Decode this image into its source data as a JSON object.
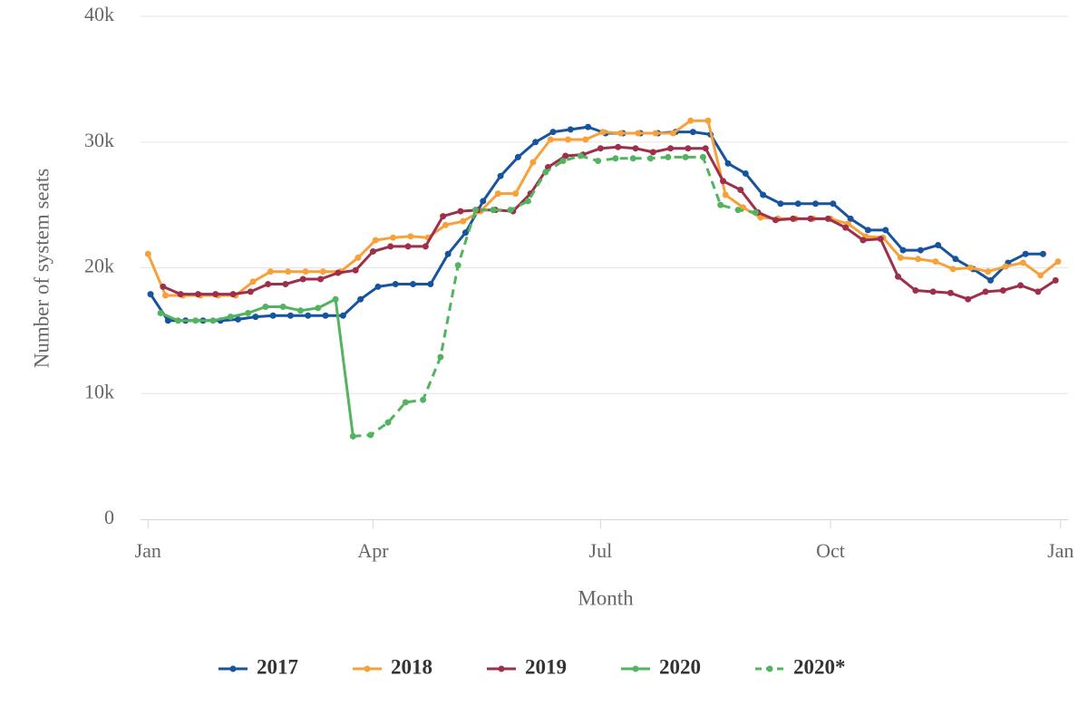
{
  "chart_data": {
    "type": "line",
    "xlabel": "Month",
    "ylabel": "Number of system seats",
    "xlim": [
      -3,
      368
    ],
    "xticks": [
      {
        "value": 0,
        "label": "Jan"
      },
      {
        "value": 90,
        "label": "Apr"
      },
      {
        "value": 181,
        "label": "Jul"
      },
      {
        "value": 273,
        "label": "Oct"
      },
      {
        "value": 365,
        "label": "Jan"
      }
    ],
    "ylim": [
      0,
      40000
    ],
    "yticks": [
      {
        "value": 0,
        "label": "0"
      },
      {
        "value": 10000,
        "label": "10k"
      },
      {
        "value": 20000,
        "label": "20k"
      },
      {
        "value": 30000,
        "label": "30k"
      },
      {
        "value": 40000,
        "label": "40k"
      }
    ],
    "grid": true,
    "legend": "bottom",
    "series": [
      {
        "name": "2017",
        "color": "#17549e",
        "line_style": "solid",
        "x": [
          1,
          8,
          15,
          22,
          29,
          36,
          43,
          50,
          57,
          64,
          71,
          78,
          85,
          92,
          99,
          106,
          113,
          120,
          127,
          134,
          141,
          148,
          155,
          162,
          169,
          176,
          183,
          190,
          197,
          204,
          211,
          218,
          225,
          232,
          239,
          246,
          253,
          260,
          267,
          274,
          281,
          288,
          295,
          302,
          309,
          316,
          323,
          330,
          337,
          344,
          351,
          358
        ],
        "values": [
          17900,
          15800,
          15800,
          15800,
          15800,
          15900,
          16100,
          16200,
          16200,
          16200,
          16200,
          16200,
          17500,
          18500,
          18700,
          18700,
          18700,
          21100,
          22800,
          25300,
          27300,
          28800,
          30000,
          30800,
          31000,
          31200,
          30700,
          30700,
          30700,
          30700,
          30800,
          30800,
          30600,
          28300,
          27500,
          25800,
          25100,
          25100,
          25100,
          25100,
          23900,
          23000,
          23000,
          21400,
          21400,
          21800,
          20700,
          19900,
          19000,
          20400,
          21100,
          21100
        ]
      },
      {
        "name": "2018",
        "color": "#f7a13a",
        "line_style": "solid",
        "x": [
          0,
          7,
          14,
          21,
          28,
          35,
          42,
          49,
          56,
          63,
          70,
          77,
          84,
          91,
          98,
          105,
          112,
          119,
          126,
          133,
          140,
          147,
          154,
          161,
          168,
          175,
          182,
          189,
          196,
          203,
          210,
          217,
          224,
          231,
          238,
          245,
          252,
          259,
          266,
          273,
          280,
          287,
          294,
          301,
          308,
          315,
          322,
          329,
          336,
          343,
          350,
          357,
          364
        ],
        "values": [
          21100,
          17800,
          17800,
          17800,
          17800,
          17800,
          18900,
          19700,
          19700,
          19700,
          19700,
          19700,
          20800,
          22200,
          22400,
          22500,
          22400,
          23400,
          23700,
          24500,
          25900,
          25900,
          28400,
          30200,
          30200,
          30200,
          30800,
          30700,
          30700,
          30700,
          30700,
          31700,
          31700,
          25800,
          24800,
          24000,
          23900,
          23900,
          23900,
          23900,
          23500,
          22500,
          22400,
          20800,
          20700,
          20500,
          19900,
          20000,
          19700,
          20100,
          20400,
          19400,
          20500
        ]
      },
      {
        "name": "2019",
        "color": "#9e2f4a",
        "line_style": "solid",
        "x": [
          6,
          13,
          20,
          27,
          34,
          41,
          48,
          55,
          62,
          69,
          76,
          83,
          90,
          97,
          104,
          111,
          118,
          125,
          132,
          139,
          146,
          153,
          160,
          167,
          174,
          181,
          188,
          195,
          202,
          209,
          216,
          223,
          230,
          237,
          244,
          251,
          258,
          265,
          272,
          279,
          286,
          293,
          300,
          307,
          314,
          321,
          328,
          335,
          342,
          349,
          356,
          363
        ],
        "values": [
          18500,
          17900,
          17900,
          17900,
          17900,
          18100,
          18700,
          18700,
          19100,
          19100,
          19600,
          19800,
          21300,
          21700,
          21700,
          21700,
          24100,
          24500,
          24600,
          24600,
          24500,
          25900,
          28000,
          28900,
          29000,
          29500,
          29600,
          29500,
          29200,
          29500,
          29500,
          29500,
          26900,
          26200,
          24400,
          23800,
          23900,
          23900,
          23900,
          23200,
          22200,
          22300,
          19300,
          18200,
          18100,
          18000,
          17500,
          18100,
          18200,
          18600,
          18100,
          19000
        ]
      },
      {
        "name": "2020",
        "color": "#52b45e",
        "line_style": "solid",
        "x": [
          5,
          12,
          19,
          26,
          33,
          40,
          47,
          54,
          61,
          68,
          75,
          82
        ],
        "values": [
          16400,
          15800,
          15800,
          15800,
          16100,
          16400,
          16900,
          16900,
          16600,
          16800,
          17500,
          6600
        ]
      },
      {
        "name": "2020*",
        "color": "#52b45e",
        "line_style": "dashed",
        "x": [
          82,
          89,
          96,
          103,
          110,
          117,
          124,
          131,
          138,
          145,
          152,
          159,
          166,
          173,
          180,
          187,
          194,
          201,
          208,
          215,
          222,
          229,
          236,
          243
        ],
        "values": [
          6600,
          6700,
          7700,
          9300,
          9500,
          12900,
          20200,
          24600,
          24600,
          24600,
          25300,
          27600,
          28500,
          28900,
          28500,
          28700,
          28700,
          28700,
          28800,
          28800,
          28800,
          25000,
          24600,
          24400
        ]
      }
    ]
  }
}
